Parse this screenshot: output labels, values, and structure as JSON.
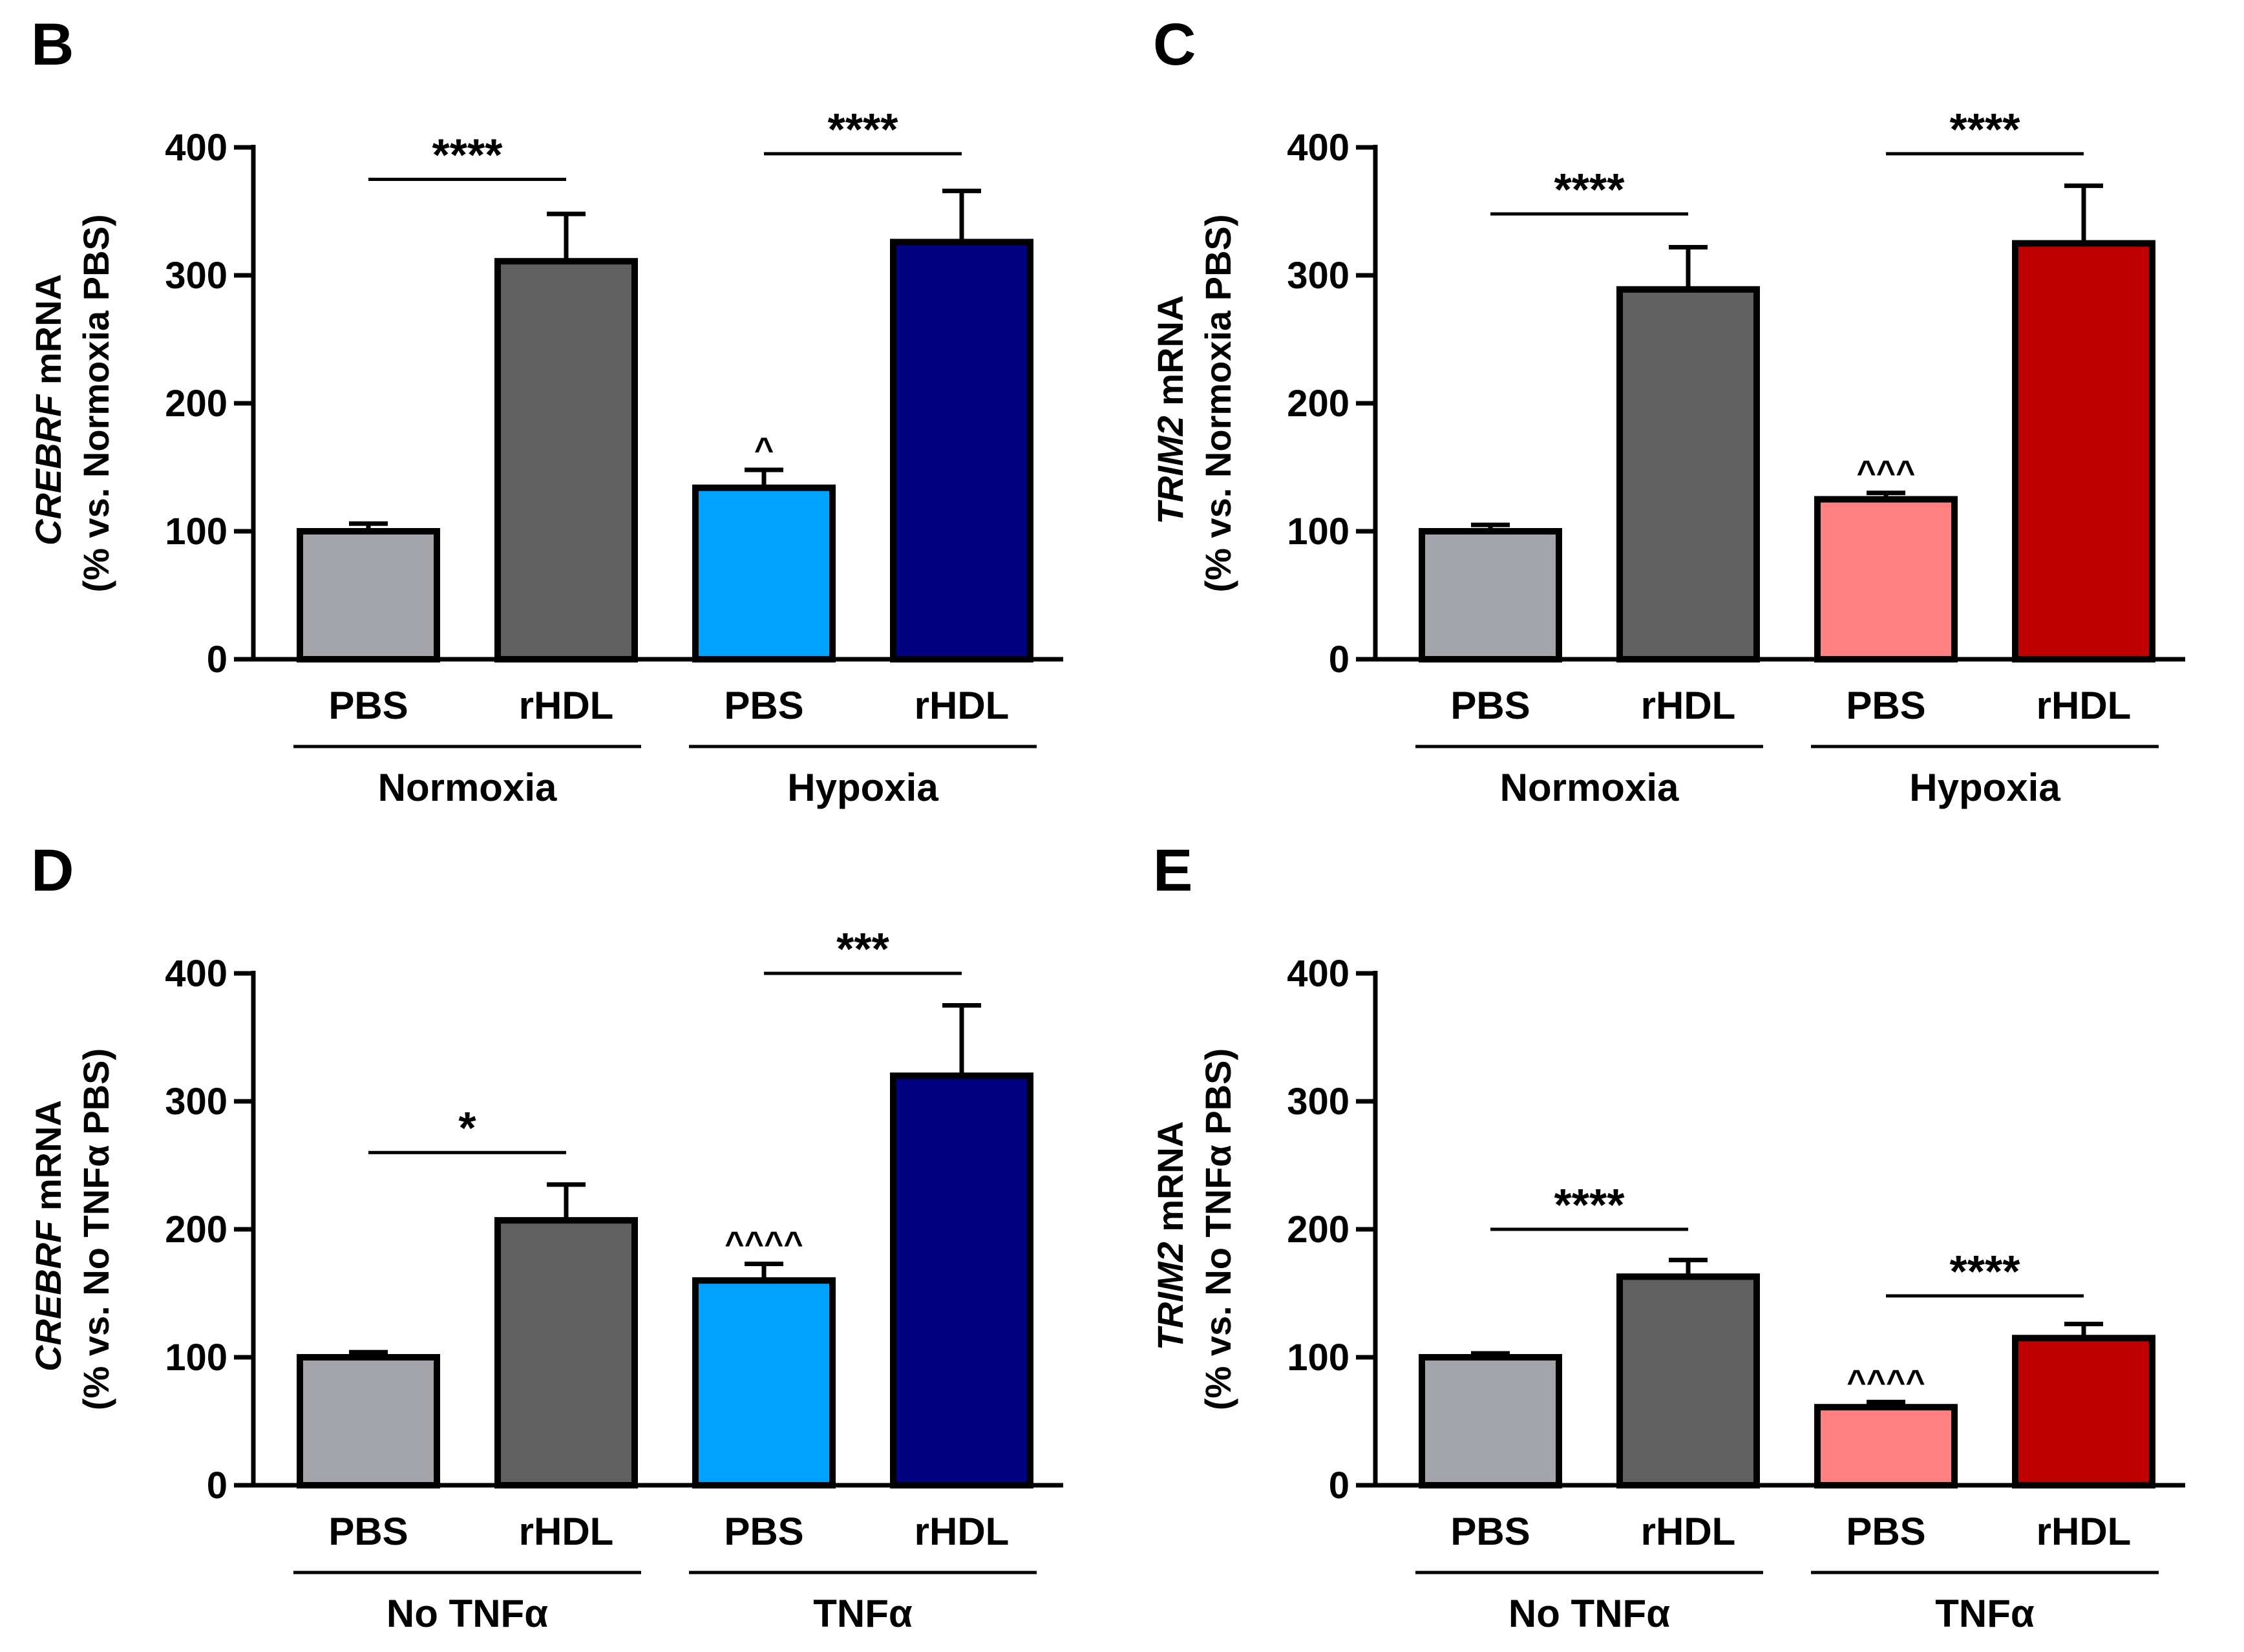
{
  "chart_data": [
    {
      "panel": "B",
      "type": "bar",
      "ylim": [
        0,
        400
      ],
      "yticks": [
        "0",
        "100",
        "200",
        "300",
        "400"
      ],
      "ylabel_italic": "CREBRF",
      "ylabel_rest": " mRNA",
      "ylabel_line2": "(% vs. Normoxia PBS)",
      "bars": [
        {
          "category": "PBS",
          "value": 100,
          "error": 6,
          "color": "#a4a4ab"
        },
        {
          "category": "rHDL",
          "value": 311,
          "error": 37,
          "color": "#606060"
        },
        {
          "category": "PBS",
          "value": 134,
          "error": 14,
          "color": "#00a2ff",
          "annotation": "^"
        },
        {
          "category": "rHDL",
          "value": 326,
          "error": 40,
          "color": "#000080"
        }
      ],
      "groups": [
        {
          "label": "Normoxia",
          "bars": [
            0,
            1
          ]
        },
        {
          "label": "Hypoxia",
          "bars": [
            2,
            3
          ]
        }
      ],
      "significance": [
        {
          "from": 0,
          "to": 1,
          "label": "****",
          "y": 375
        },
        {
          "from": 2,
          "to": 3,
          "label": "****",
          "y": 395
        }
      ]
    },
    {
      "panel": "C",
      "type": "bar",
      "ylim": [
        0,
        400
      ],
      "yticks": [
        "0",
        "100",
        "200",
        "300",
        "400"
      ],
      "ylabel_italic": "TRIM2",
      "ylabel_rest": " mRNA",
      "ylabel_line2": "(% vs. Normoxia PBS)",
      "bars": [
        {
          "category": "PBS",
          "value": 100,
          "error": 5,
          "color": "#a4a4ab"
        },
        {
          "category": "rHDL",
          "value": 289,
          "error": 33,
          "color": "#606060"
        },
        {
          "category": "PBS",
          "value": 125,
          "error": 5,
          "color": "#ff8080",
          "annotation": "^^^"
        },
        {
          "category": "rHDL",
          "value": 325,
          "error": 45,
          "color": "#c00000"
        }
      ],
      "groups": [
        {
          "label": "Normoxia",
          "bars": [
            0,
            1
          ]
        },
        {
          "label": "Hypoxia",
          "bars": [
            2,
            3
          ]
        }
      ],
      "significance": [
        {
          "from": 0,
          "to": 1,
          "label": "****",
          "y": 348
        },
        {
          "from": 2,
          "to": 3,
          "label": "****",
          "y": 395
        }
      ]
    },
    {
      "panel": "D",
      "type": "bar",
      "ylim": [
        0,
        400
      ],
      "yticks": [
        "0",
        "100",
        "200",
        "300",
        "400"
      ],
      "ylabel_italic": "CREBRF",
      "ylabel_rest": " mRNA",
      "ylabel_line2": "(% vs. No TNFα PBS)",
      "bars": [
        {
          "category": "PBS",
          "value": 100,
          "error": 4,
          "color": "#a4a4ab"
        },
        {
          "category": "rHDL",
          "value": 207,
          "error": 28,
          "color": "#606060"
        },
        {
          "category": "PBS",
          "value": 160,
          "error": 13,
          "color": "#00a2ff",
          "annotation": "^^^^"
        },
        {
          "category": "rHDL",
          "value": 320,
          "error": 55,
          "color": "#000080"
        }
      ],
      "groups": [
        {
          "label": "No TNFα",
          "bars": [
            0,
            1
          ]
        },
        {
          "label": "TNFα",
          "bars": [
            2,
            3
          ]
        }
      ],
      "significance": [
        {
          "from": 0,
          "to": 1,
          "label": "*",
          "y": 260
        },
        {
          "from": 2,
          "to": 3,
          "label": "***",
          "y": 400
        }
      ]
    },
    {
      "panel": "E",
      "type": "bar",
      "ylim": [
        0,
        400
      ],
      "yticks": [
        "0",
        "100",
        "200",
        "300",
        "400"
      ],
      "ylabel_italic": "TRIM2",
      "ylabel_rest": " mRNA",
      "ylabel_line2": "(% vs. No TNFα PBS)",
      "bars": [
        {
          "category": "PBS",
          "value": 100,
          "error": 3,
          "color": "#a4a4ab"
        },
        {
          "category": "rHDL",
          "value": 163,
          "error": 13,
          "color": "#606060"
        },
        {
          "category": "PBS",
          "value": 61,
          "error": 4,
          "color": "#ff8080",
          "annotation": "^^^^"
        },
        {
          "category": "rHDL",
          "value": 115,
          "error": 11,
          "color": "#c00000"
        }
      ],
      "groups": [
        {
          "label": "No TNFα",
          "bars": [
            0,
            1
          ]
        },
        {
          "label": "TNFα",
          "bars": [
            2,
            3
          ]
        }
      ],
      "significance": [
        {
          "from": 0,
          "to": 1,
          "label": "****",
          "y": 200
        },
        {
          "from": 2,
          "to": 3,
          "label": "****",
          "y": 148
        }
      ]
    }
  ]
}
